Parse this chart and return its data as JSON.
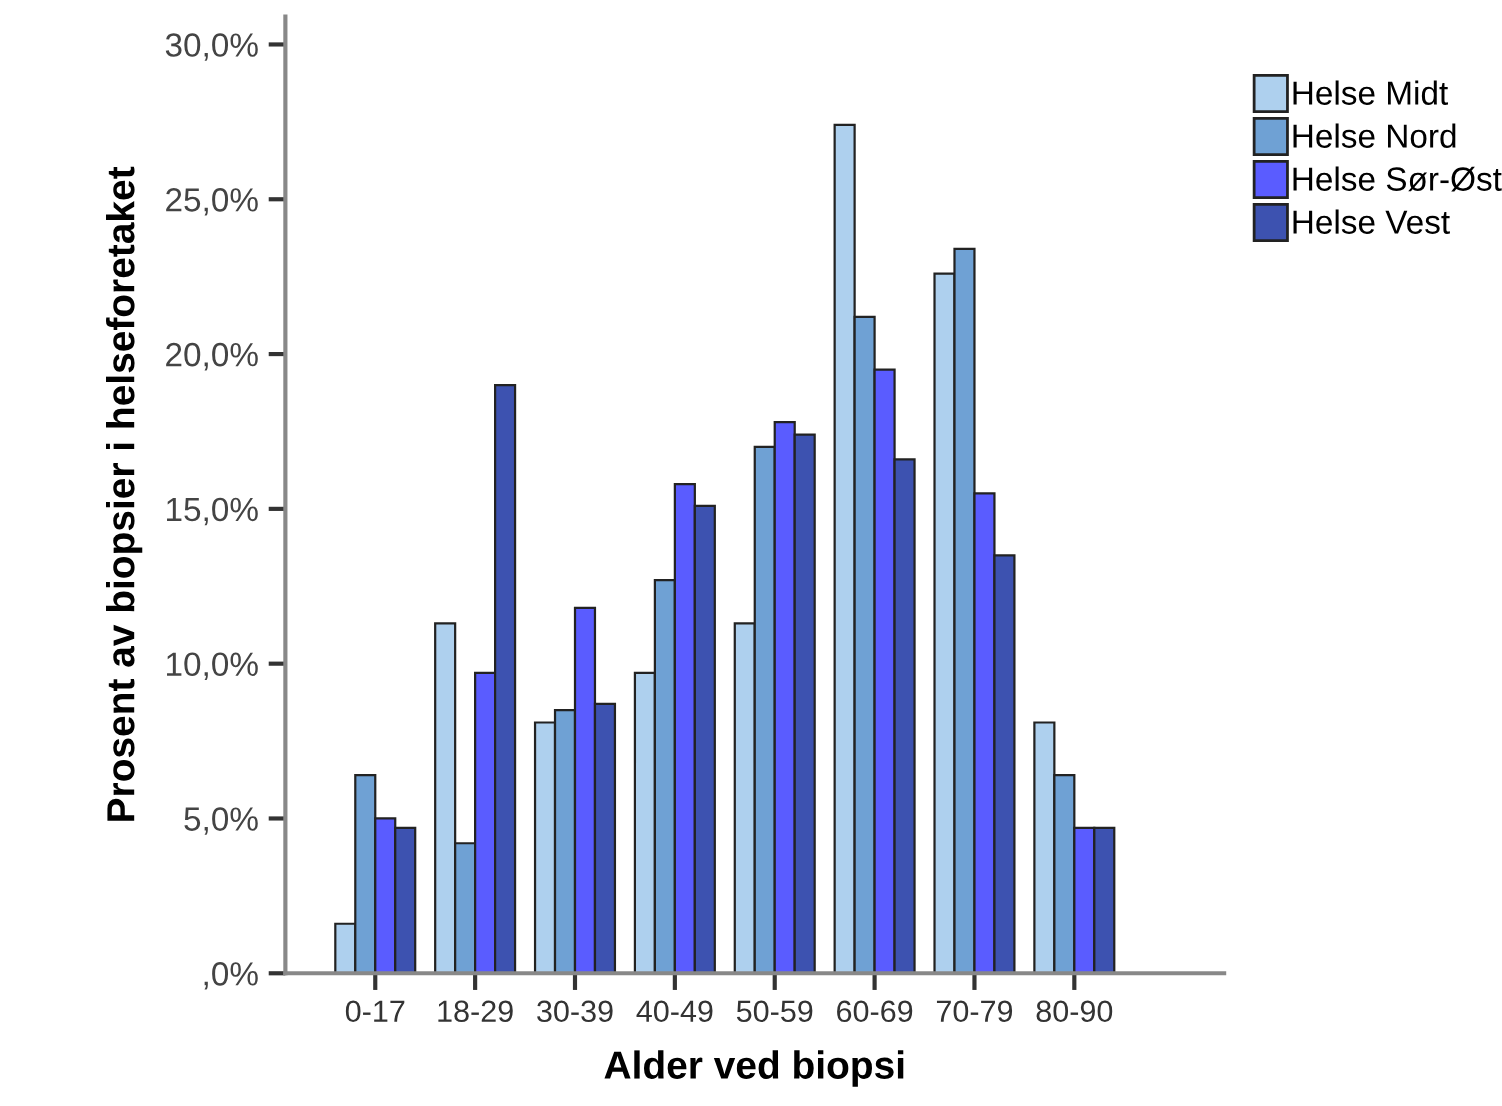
{
  "chart_data": {
    "type": "bar",
    "xlabel": "Alder ved biopsi",
    "ylabel": "Prosent av biopsier i helseforetaket",
    "categories": [
      "0-17",
      "18-29",
      "30-39",
      "40-49",
      "50-59",
      "60-69",
      "70-79",
      "80-90"
    ],
    "series": [
      {
        "name": "Helse Midt",
        "color": "#aed0ee",
        "values": [
          1.6,
          11.3,
          8.1,
          9.7,
          11.3,
          27.4,
          22.6,
          8.1
        ]
      },
      {
        "name": "Helse Nord",
        "color": "#6fa1d4",
        "values": [
          6.4,
          4.2,
          8.5,
          12.7,
          17.0,
          21.2,
          23.4,
          6.4
        ]
      },
      {
        "name": "Helse Sør-Øst",
        "color": "#5a5cff",
        "values": [
          5.0,
          9.7,
          11.8,
          15.8,
          17.8,
          19.5,
          15.5,
          4.7
        ]
      },
      {
        "name": "Helse Vest",
        "color": "#3d52b0",
        "values": [
          4.7,
          19.0,
          8.7,
          15.1,
          17.4,
          16.6,
          13.5,
          4.7
        ]
      }
    ],
    "ylim": [
      0,
      30.9
    ],
    "yticks": [
      {
        "value": 0,
        "label": ",0%"
      },
      {
        "value": 5,
        "label": "5,0%"
      },
      {
        "value": 10,
        "label": "10,0%"
      },
      {
        "value": 15,
        "label": "15,0%"
      },
      {
        "value": 20,
        "label": "20,0%"
      },
      {
        "value": 25,
        "label": "25,0%"
      },
      {
        "value": 30,
        "label": "30,0%"
      }
    ],
    "grid": false,
    "legend": "top right"
  }
}
